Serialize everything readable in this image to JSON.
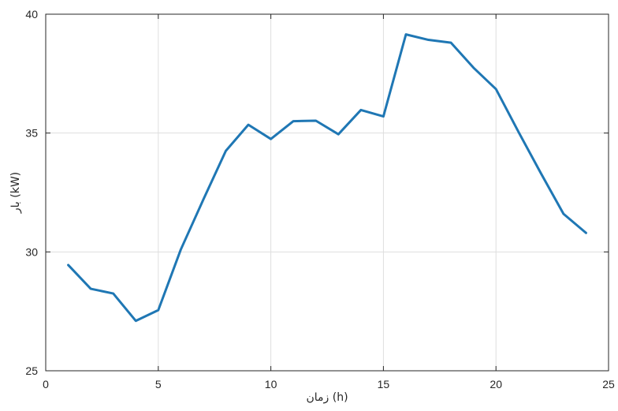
{
  "chart_data": {
    "type": "line",
    "title": "",
    "xlabel": "زمان (h)",
    "ylabel": "بار (kW)",
    "xlim": [
      0,
      25
    ],
    "ylim": [
      25,
      40
    ],
    "xticks": [
      0,
      5,
      10,
      15,
      20,
      25
    ],
    "yticks": [
      25,
      30,
      35,
      40
    ],
    "grid": true,
    "series": [
      {
        "color": "#1f77b4",
        "x": [
          1,
          2,
          3,
          4,
          5,
          6,
          7,
          8,
          9,
          10,
          11,
          12,
          13,
          14,
          15,
          16,
          17,
          18,
          19,
          20,
          21,
          22,
          23,
          24
        ],
        "y": [
          29.45,
          28.45,
          28.25,
          27.1,
          27.55,
          30.1,
          32.2,
          34.25,
          35.35,
          34.75,
          35.5,
          35.52,
          34.95,
          35.97,
          35.7,
          39.15,
          38.92,
          38.8,
          37.75,
          36.85,
          35.05,
          33.3,
          31.6,
          30.8
        ]
      }
    ]
  }
}
